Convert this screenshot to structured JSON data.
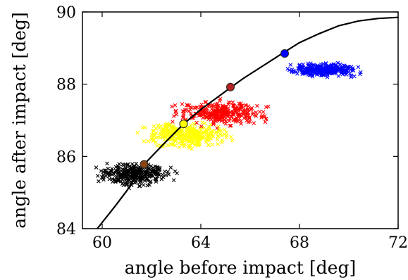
{
  "chart_data": {
    "type": "scatter",
    "title": "",
    "xlabel": "angle before impact [deg]",
    "ylabel": "angle after impact [deg]",
    "xlim": [
      59.2,
      72
    ],
    "ylim": [
      84,
      90
    ],
    "xticks": [
      60,
      64,
      68,
      72
    ],
    "yticks": [
      84,
      86,
      88,
      90
    ],
    "grid": false,
    "legend": "none",
    "series": [
      {
        "kind": "cloud",
        "marker": "x",
        "color": "#000000",
        "center": [
          61.3,
          85.5
        ],
        "x_range": [
          59.4,
          63.3
        ],
        "y_range": [
          85.0,
          85.85
        ]
      },
      {
        "kind": "cloud",
        "marker": "x",
        "color": "#ffff00",
        "center": [
          63.4,
          86.6
        ],
        "x_range": [
          61.2,
          65.9
        ],
        "y_range": [
          86.0,
          87.1
        ]
      },
      {
        "kind": "cloud",
        "marker": "x",
        "color": "#ff0000",
        "center": [
          64.8,
          87.2
        ],
        "x_range": [
          61.6,
          67.2
        ],
        "y_range": [
          86.7,
          87.7
        ]
      },
      {
        "kind": "cloud",
        "marker": "x",
        "color": "#0000ff",
        "center": [
          69.0,
          88.4
        ],
        "x_range": [
          66.8,
          70.9
        ],
        "y_range": [
          88.1,
          88.6
        ]
      },
      {
        "kind": "curve",
        "color": "#000000",
        "x": [
          59.8,
          60.5,
          61.0,
          61.7,
          62.5,
          63.3,
          64.0,
          65.0,
          65.7,
          66.5,
          67.3,
          68.0,
          68.8,
          69.6,
          70.4,
          71.2,
          72.0
        ],
        "y": [
          84.0,
          84.6,
          85.05,
          85.78,
          86.35,
          86.9,
          87.3,
          87.8,
          88.15,
          88.5,
          88.85,
          89.15,
          89.4,
          89.62,
          89.75,
          89.82,
          89.85
        ]
      },
      {
        "kind": "points",
        "marker": "circle",
        "points": [
          {
            "x": 61.7,
            "y": 85.78,
            "color": "#8b4513"
          },
          {
            "x": 63.3,
            "y": 86.9,
            "color": "#ffff00"
          },
          {
            "x": 65.2,
            "y": 87.92,
            "color": "#b22222"
          },
          {
            "x": 67.4,
            "y": 88.85,
            "color": "#0000ff"
          }
        ]
      }
    ]
  }
}
